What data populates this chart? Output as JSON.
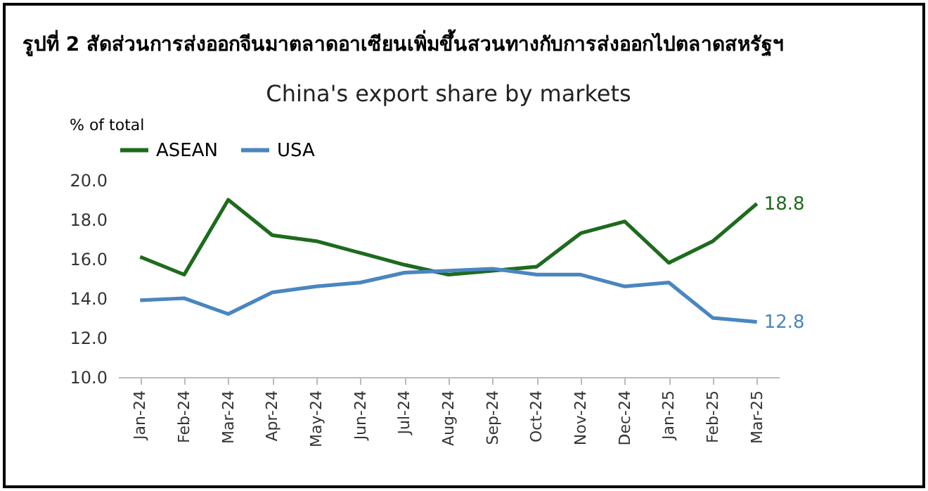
{
  "chart_data": {
    "type": "line",
    "title": "China's export share by markets",
    "annotations": [
      "รูปที่ 2 สัดส่วนการส่งออกจีนมาตลาดอาเซียนเพิ่มขึ้นสวนทางกับการส่งออกไปตลาดสหรัฐฯ"
    ],
    "ylabel": "% of total",
    "categories": [
      "Jan-24",
      "Feb-24",
      "Mar-24",
      "Apr-24",
      "May-24",
      "Jun-24",
      "Jul-24",
      "Aug-24",
      "Sep-24",
      "Oct-24",
      "Nov-24",
      "Dec-24",
      "Jan-25",
      "Feb-25",
      "Mar-25"
    ],
    "series": [
      {
        "name": "ASEAN",
        "color": "#1e6b1e",
        "values": [
          16.1,
          15.2,
          19.0,
          17.2,
          16.9,
          16.3,
          15.7,
          15.2,
          15.4,
          15.6,
          17.3,
          17.9,
          15.8,
          16.9,
          18.8
        ],
        "value_labels": [
          null,
          null,
          null,
          null,
          null,
          null,
          null,
          null,
          null,
          null,
          null,
          null,
          null,
          null,
          "18.8"
        ]
      },
      {
        "name": "USA",
        "color": "#4a86c0",
        "values": [
          13.9,
          14.0,
          13.2,
          14.3,
          14.6,
          14.8,
          15.3,
          15.4,
          15.5,
          15.2,
          15.2,
          14.6,
          14.8,
          13.0,
          12.8
        ],
        "value_labels": [
          null,
          null,
          null,
          null,
          null,
          null,
          null,
          null,
          null,
          null,
          null,
          null,
          null,
          null,
          "12.8"
        ]
      }
    ],
    "ylim": [
      10,
      20
    ],
    "yticks": [
      {
        "value": 10,
        "label": "10.0"
      },
      {
        "value": 12,
        "label": "12.0"
      },
      {
        "value": 14,
        "label": "14.0"
      },
      {
        "value": 16,
        "label": "16.0"
      },
      {
        "value": 18,
        "label": "18.0"
      },
      {
        "value": 20,
        "label": "20.0"
      }
    ],
    "grid": false,
    "legend": "top",
    "line_style": "solid"
  }
}
